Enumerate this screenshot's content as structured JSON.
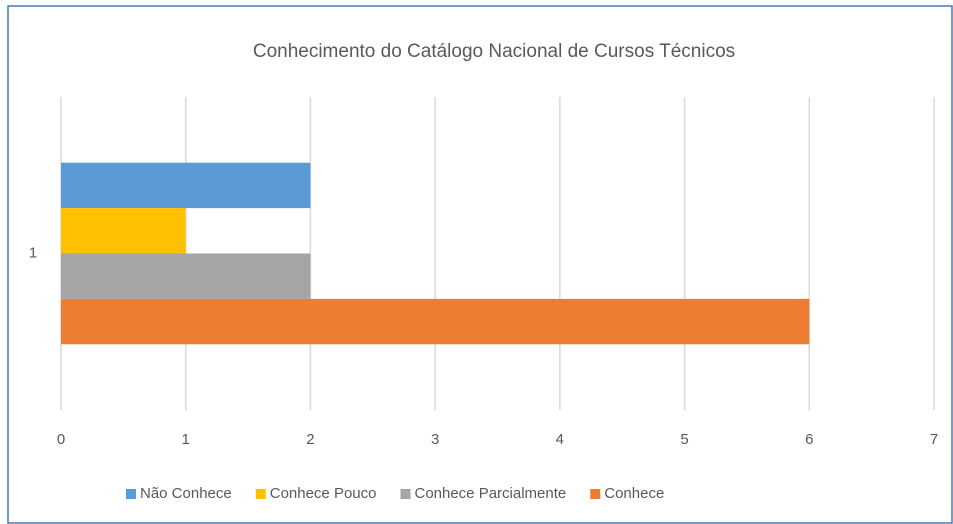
{
  "chart_data": {
    "type": "bar",
    "orientation": "horizontal",
    "title": "Conhecimento do Catálogo Nacional de Cursos Técnicos",
    "categories": [
      "1"
    ],
    "series": [
      {
        "name": "Não Conhece",
        "color": "#5b9bd5",
        "values": [
          2
        ]
      },
      {
        "name": "Conhece Pouco",
        "color": "#ffc000",
        "values": [
          1
        ]
      },
      {
        "name": "Conhece Parcialmente",
        "color": "#a5a5a5",
        "values": [
          2
        ]
      },
      {
        "name": "Conhece",
        "color": "#ed7d31",
        "values": [
          6
        ]
      }
    ],
    "xlim": [
      0,
      7
    ],
    "xticks": [
      0,
      1,
      2,
      3,
      4,
      5,
      6,
      7
    ],
    "grid": true,
    "legend": "bottom"
  }
}
